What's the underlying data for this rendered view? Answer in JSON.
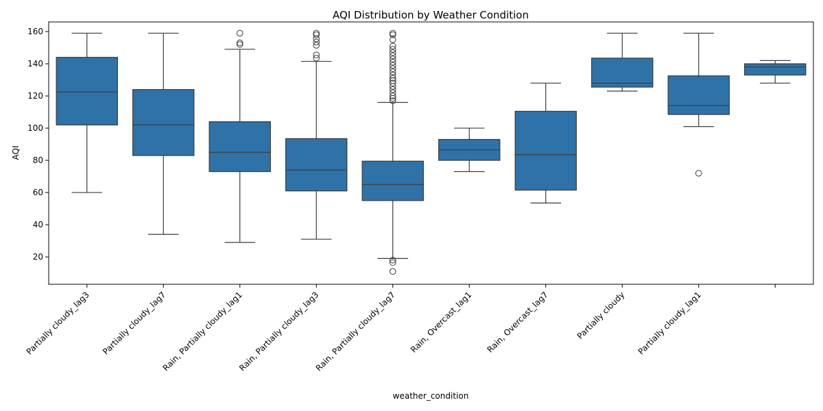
{
  "chart_data": {
    "type": "box",
    "title": "AQI Distribution by Weather Condition",
    "xlabel": "weather_condition",
    "ylabel": "AQI",
    "ylim": [
      3,
      166
    ],
    "yticks": [
      20,
      40,
      60,
      80,
      100,
      120,
      140,
      160
    ],
    "grid": false,
    "box_color": "#2f72a8",
    "boxes": [
      {
        "category": "Partially cloudy_lag3",
        "whisker_low": 60,
        "q1": 102,
        "median": 122.5,
        "q3": 144,
        "whisker_high": 159,
        "outliers": []
      },
      {
        "category": "Partially cloudy_lag7",
        "whisker_low": 34,
        "q1": 83,
        "median": 102,
        "q3": 124,
        "whisker_high": 159,
        "outliers": []
      },
      {
        "category": "Rain, Partially cloudy_lag1",
        "whisker_low": 29,
        "q1": 73,
        "median": 85,
        "q3": 104,
        "whisker_high": 149,
        "outliers": [
          152,
          153,
          159
        ]
      },
      {
        "category": "Rain, Partially cloudy_lag3",
        "whisker_low": 31,
        "q1": 61,
        "median": 74,
        "q3": 93.5,
        "whisker_high": 141.5,
        "outliers": [
          143.5,
          145.5,
          151.5,
          153.5,
          155.5,
          158,
          159
        ]
      },
      {
        "category": "Rain, Partially cloudy_lag7",
        "whisker_low": 19,
        "q1": 55,
        "median": 65,
        "q3": 79.5,
        "whisker_high": 116,
        "outliers": [
          11,
          16.5,
          18,
          117,
          118.5,
          120,
          122,
          124,
          126,
          128,
          129.5,
          131,
          133,
          135,
          137,
          139,
          141,
          143,
          145,
          147,
          149,
          151,
          155,
          158,
          159
        ]
      },
      {
        "category": "Rain, Overcast_lag1",
        "whisker_low": 73,
        "q1": 80,
        "median": 86.5,
        "q3": 93,
        "whisker_high": 100,
        "outliers": []
      },
      {
        "category": "Rain, Overcast_lag7",
        "whisker_low": 53.5,
        "q1": 61.5,
        "median": 83.5,
        "q3": 110.5,
        "whisker_high": 128,
        "outliers": []
      },
      {
        "category": "Partially cloudy",
        "whisker_low": 123,
        "q1": 125.5,
        "median": 128,
        "q3": 143.5,
        "whisker_high": 159,
        "outliers": []
      },
      {
        "category": "Partially cloudy_lag1",
        "whisker_low": 101,
        "q1": 108.5,
        "median": 114,
        "q3": 132.5,
        "whisker_high": 159,
        "outliers": [
          72
        ]
      },
      {
        "category": "",
        "whisker_low": 128,
        "q1": 133,
        "median": 138,
        "q3": 140,
        "whisker_high": 142,
        "outliers": []
      }
    ]
  }
}
